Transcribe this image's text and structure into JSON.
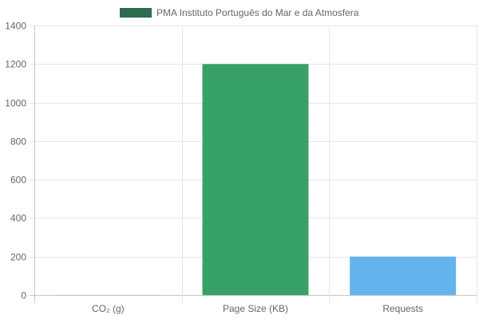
{
  "chart_data": {
    "type": "bar",
    "categories": [
      "CO₂ (g)",
      "Page Size (KB)",
      "Requests"
    ],
    "series": [
      {
        "name": "PMA Instituto Português do Mar e da Atmosfera",
        "values": [
          0.5,
          1200,
          200
        ],
        "colors": [
          "#2d6a4f",
          "#38a169",
          "#63b3ed"
        ]
      }
    ],
    "legend_color": "#2d6a4f",
    "ylim": [
      0,
      1400
    ],
    "yticks": [
      0,
      200,
      400,
      600,
      800,
      1000,
      1200,
      1400
    ],
    "grid": true,
    "legend_position": "top-center",
    "title": "",
    "xlabel": "",
    "ylabel": ""
  }
}
